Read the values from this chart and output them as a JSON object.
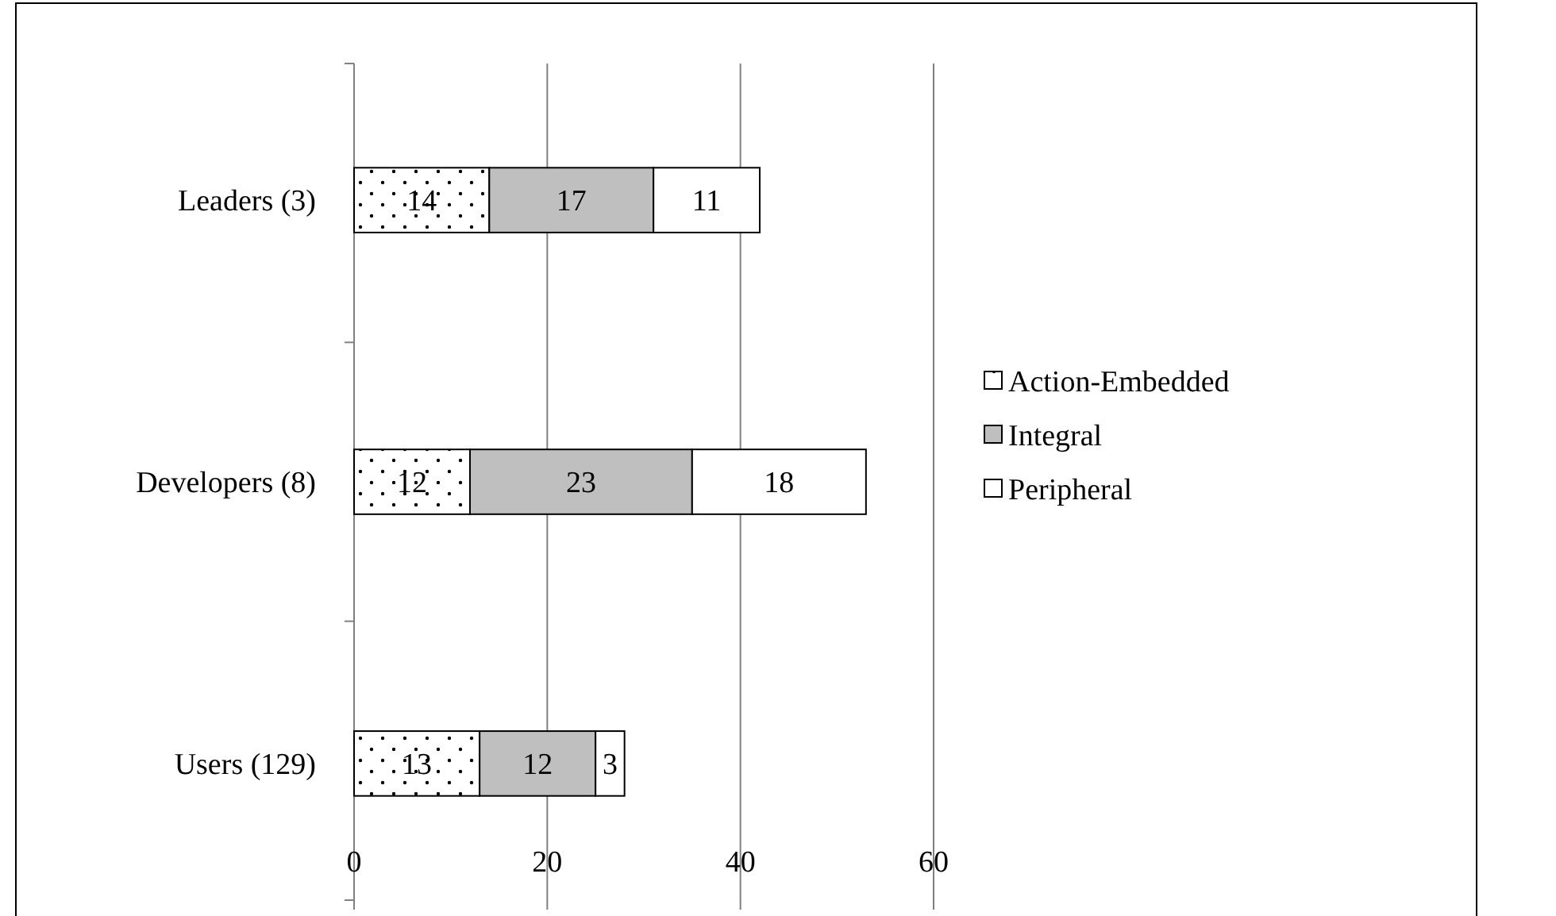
{
  "chart_data": {
    "type": "bar",
    "orientation": "horizontal",
    "stacked": true,
    "categories": [
      "Leaders (3)",
      "Developers (8)",
      "Users (129)"
    ],
    "series": [
      {
        "name": "Action-Embedded",
        "color": "#ffffff",
        "values": [
          14,
          12,
          13
        ]
      },
      {
        "name": "Integral",
        "color": "#bfbfbf",
        "values": [
          17,
          23,
          12
        ]
      },
      {
        "name": "Peripheral",
        "color": "#ffffff",
        "values": [
          11,
          18,
          3
        ]
      }
    ],
    "xlim": [
      0,
      60
    ],
    "xticks": [
      0,
      20,
      40,
      60
    ],
    "grid": "x",
    "legend": "right",
    "data_labels": true
  }
}
